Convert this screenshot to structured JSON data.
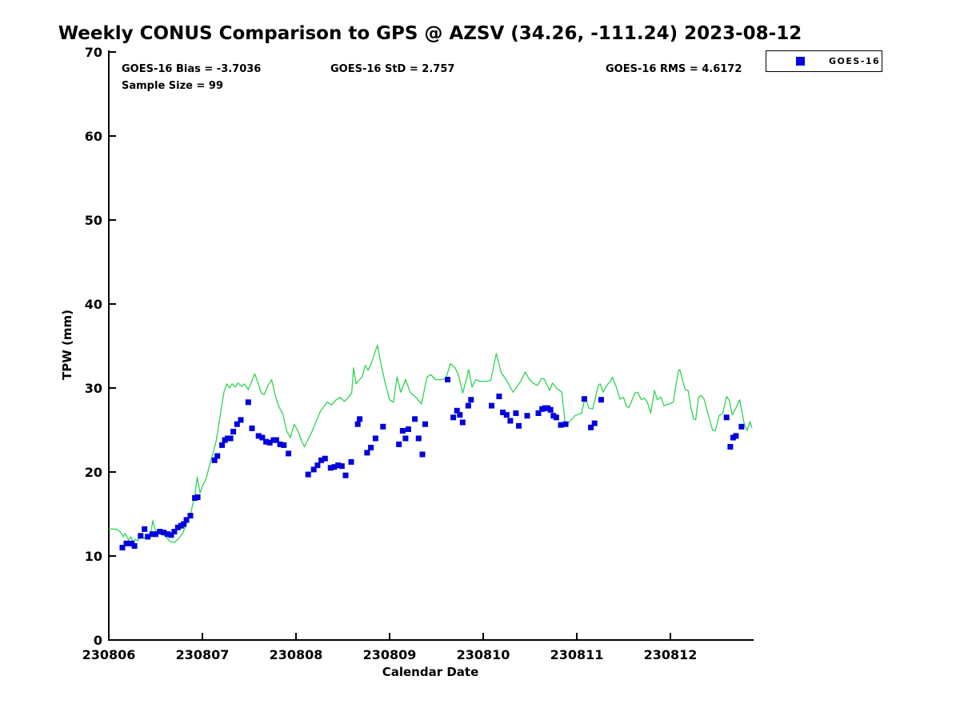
{
  "figure": {
    "title": "Weekly CONUS Comparison to GPS @ AZSV (34.26, -111.24) 2023-08-12",
    "stats": {
      "bias_label": "GOES-16 Bias = -3.7036",
      "std_label": "GOES-16 StD = 2.757",
      "rms_label": "GOES-16 RMS = 4.6172",
      "sample_label": "Sample Size = 99"
    },
    "legend": {
      "label": "GOES-16",
      "marker_color": "#0000dd"
    }
  },
  "chart_data": {
    "type": "line+scatter",
    "title": "Weekly CONUS Comparison to GPS @ AZSV (34.26, -111.24) 2023-08-12",
    "xlabel": "Calendar Date",
    "ylabel": "TPW (mm)",
    "x_tick_labels": [
      "230806",
      "230807",
      "230808",
      "230809",
      "230810",
      "230811",
      "230812"
    ],
    "y_ticks": [
      0,
      10,
      20,
      30,
      40,
      50,
      60,
      70
    ],
    "ylim": [
      0,
      70
    ],
    "xlim_days": [
      0,
      6.89
    ],
    "x_unit": "days since 230806 00Z",
    "grid": false,
    "legend_position": "top-right-outside",
    "stats": {
      "bias": -3.7036,
      "std": 2.757,
      "rms": 4.6172,
      "sample_size": 99
    },
    "annotations": [
      "GOES-16 Bias = -3.7036",
      "GOES-16 StD = 2.757",
      "GOES-16 RMS = 4.6172",
      "Sample Size = 99"
    ],
    "series": [
      {
        "name": "GPS",
        "type": "line",
        "color": "#2ed353",
        "x": [
          0.0,
          0.08,
          0.12,
          0.155,
          0.175,
          0.21,
          0.235,
          0.26,
          0.285,
          0.31,
          0.345,
          0.375,
          0.42,
          0.445,
          0.47,
          0.5,
          0.545,
          0.6,
          0.655,
          0.7,
          0.745,
          0.79,
          0.835,
          0.875,
          0.92,
          0.945,
          0.975,
          1.0,
          1.04,
          1.08,
          1.12,
          1.15,
          1.19,
          1.23,
          1.26,
          1.29,
          1.32,
          1.35,
          1.38,
          1.42,
          1.45,
          1.49,
          1.52,
          1.56,
          1.6,
          1.63,
          1.66,
          1.7,
          1.74,
          1.78,
          1.82,
          1.86,
          1.9,
          1.94,
          1.98,
          2.02,
          2.06,
          2.09,
          2.13,
          2.17,
          2.21,
          2.26,
          2.33,
          2.38,
          2.43,
          2.47,
          2.52,
          2.56,
          2.595,
          2.615,
          2.64,
          2.68,
          2.71,
          2.74,
          2.77,
          2.81,
          2.87,
          2.9,
          2.95,
          3.0,
          3.04,
          3.08,
          3.12,
          3.17,
          3.22,
          3.28,
          3.34,
          3.4,
          3.44,
          3.49,
          3.55,
          3.6,
          3.65,
          3.7,
          3.74,
          3.78,
          3.82,
          3.845,
          3.88,
          3.92,
          3.96,
          4.02,
          4.08,
          4.14,
          4.19,
          4.25,
          4.32,
          4.39,
          4.45,
          4.49,
          4.53,
          4.58,
          4.62,
          4.65,
          4.71,
          4.74,
          4.78,
          4.84,
          4.875,
          4.89,
          4.94,
          4.98,
          5.05,
          5.09,
          5.13,
          5.17,
          5.23,
          5.25,
          5.28,
          5.32,
          5.36,
          5.38,
          5.42,
          5.46,
          5.5,
          5.53,
          5.56,
          5.62,
          5.65,
          5.69,
          5.72,
          5.75,
          5.79,
          5.83,
          5.86,
          5.9,
          5.93,
          5.99,
          6.03,
          6.085,
          6.1,
          6.14,
          6.16,
          6.19,
          6.22,
          6.25,
          6.27,
          6.3,
          6.33,
          6.36,
          6.4,
          6.45,
          6.48,
          6.52,
          6.56,
          6.6,
          6.63,
          6.66,
          6.7,
          6.74,
          6.79,
          6.82,
          6.85,
          6.87
        ],
        "y": [
          13.2,
          13.2,
          12.9,
          12.3,
          12.7,
          11.9,
          12.3,
          11.6,
          12.0,
          11.8,
          12.4,
          12.1,
          12.6,
          12.4,
          14.2,
          13.0,
          12.7,
          12.4,
          11.7,
          11.6,
          12.1,
          12.7,
          14.0,
          15.1,
          17.2,
          19.4,
          17.5,
          18.3,
          19.2,
          21.0,
          22.5,
          23.8,
          26.7,
          29.5,
          30.5,
          30.0,
          30.5,
          30.1,
          30.6,
          30.2,
          30.5,
          29.8,
          30.6,
          31.7,
          30.4,
          29.4,
          29.2,
          30.3,
          31.0,
          29.0,
          27.7,
          26.9,
          24.9,
          24.1,
          25.7,
          24.9,
          23.7,
          23.0,
          23.9,
          24.8,
          25.9,
          27.2,
          28.3,
          28.0,
          28.6,
          28.9,
          28.4,
          28.9,
          29.4,
          32.4,
          30.5,
          31.0,
          31.4,
          32.7,
          32.1,
          33.1,
          35.1,
          33.3,
          30.7,
          28.6,
          28.3,
          31.3,
          29.5,
          31.0,
          29.5,
          28.9,
          28.1,
          31.3,
          31.6,
          31.0,
          31.0,
          31.1,
          32.9,
          32.4,
          31.4,
          29.4,
          31.0,
          32.2,
          30.1,
          31.0,
          30.8,
          30.8,
          30.9,
          34.1,
          31.9,
          30.9,
          29.5,
          30.6,
          31.9,
          31.1,
          30.6,
          30.3,
          31.1,
          31.1,
          29.7,
          30.6,
          30.0,
          29.5,
          25.8,
          25.6,
          26.2,
          26.7,
          27.0,
          28.9,
          27.6,
          27.5,
          30.3,
          30.5,
          29.5,
          30.3,
          30.8,
          31.3,
          30.2,
          28.7,
          28.9,
          27.8,
          27.7,
          29.4,
          29.5,
          28.6,
          28.8,
          28.4,
          27.0,
          29.7,
          28.6,
          28.9,
          27.9,
          28.1,
          28.3,
          32.0,
          32.2,
          30.5,
          29.8,
          29.7,
          27.6,
          26.3,
          26.2,
          28.9,
          29.1,
          28.7,
          27.0,
          25.0,
          24.9,
          26.7,
          27.0,
          29.0,
          28.5,
          26.8,
          27.6,
          28.6,
          25.7,
          24.9,
          26.0,
          25.3
        ]
      },
      {
        "name": "GOES-16",
        "type": "scatter",
        "marker": "square",
        "marker_size": 7,
        "color": "#0000dd",
        "x": [
          0.145,
          0.188,
          0.245,
          0.274,
          0.34,
          0.382,
          0.416,
          0.464,
          0.5,
          0.545,
          0.587,
          0.63,
          0.667,
          0.7,
          0.738,
          0.772,
          0.8,
          0.83,
          0.872,
          0.92,
          0.95,
          1.13,
          1.16,
          1.21,
          1.24,
          1.27,
          1.3,
          1.33,
          1.37,
          1.41,
          1.49,
          1.53,
          1.6,
          1.64,
          1.68,
          1.72,
          1.76,
          1.79,
          1.83,
          1.87,
          1.92,
          2.13,
          2.19,
          2.23,
          2.27,
          2.31,
          2.37,
          2.41,
          2.45,
          2.49,
          2.53,
          2.59,
          2.66,
          2.68,
          2.76,
          2.8,
          2.85,
          2.93,
          3.1,
          3.14,
          3.17,
          3.2,
          3.27,
          3.31,
          3.35,
          3.38,
          3.62,
          3.68,
          3.72,
          3.75,
          3.78,
          3.84,
          3.87,
          4.09,
          4.17,
          4.21,
          4.25,
          4.29,
          4.35,
          4.38,
          4.47,
          4.59,
          4.63,
          4.66,
          4.69,
          4.72,
          4.75,
          4.78,
          4.83,
          4.88,
          5.08,
          5.15,
          5.19,
          5.26,
          6.6,
          6.64,
          6.67,
          6.7,
          6.76
        ],
        "y": [
          11.0,
          11.5,
          11.5,
          11.2,
          12.4,
          13.2,
          12.3,
          12.6,
          12.6,
          12.9,
          12.8,
          12.6,
          12.5,
          12.9,
          13.4,
          13.6,
          13.8,
          14.3,
          14.8,
          16.9,
          17.0,
          21.4,
          21.9,
          23.2,
          23.8,
          24.0,
          24.0,
          24.8,
          25.7,
          26.2,
          28.3,
          25.2,
          24.3,
          24.1,
          23.6,
          23.5,
          23.8,
          23.8,
          23.3,
          23.2,
          22.2,
          19.7,
          20.3,
          20.8,
          21.4,
          21.6,
          20.5,
          20.6,
          20.8,
          20.7,
          19.6,
          21.2,
          25.7,
          26.3,
          22.3,
          22.9,
          24.0,
          25.4,
          23.3,
          24.9,
          24.0,
          25.1,
          26.3,
          24.0,
          22.1,
          25.7,
          31.0,
          26.5,
          27.3,
          26.8,
          25.9,
          27.9,
          28.6,
          27.9,
          29.0,
          27.1,
          26.8,
          26.1,
          27.0,
          25.5,
          26.7,
          27.0,
          27.5,
          27.6,
          27.6,
          27.4,
          26.7,
          26.5,
          25.6,
          25.7,
          28.7,
          25.3,
          25.8,
          28.6,
          26.5,
          23.0,
          24.1,
          24.3,
          25.4
        ]
      }
    ]
  }
}
